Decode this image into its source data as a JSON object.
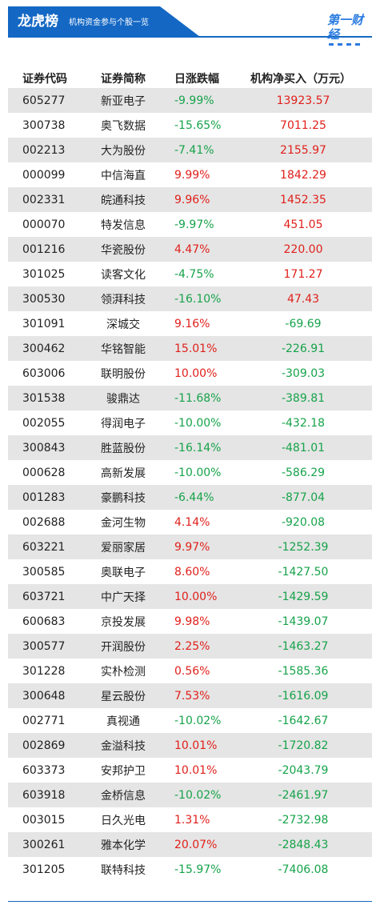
{
  "header": {
    "title": "龙虎榜",
    "subtitle": "机构资金参与个股一览",
    "logo_text": "第一财经",
    "accent_color": "#1468c4"
  },
  "table": {
    "columns": [
      "证券代码",
      "证券简称",
      "日涨跌幅",
      "机构净买入（万元）"
    ],
    "rows": [
      {
        "code": "605277",
        "name": "新亚电子",
        "change": "-9.99%",
        "net": "13923.57",
        "change_dir": "down",
        "net_dir": "up"
      },
      {
        "code": "300738",
        "name": "奥飞数据",
        "change": "-15.65%",
        "net": "7011.25",
        "change_dir": "down",
        "net_dir": "up"
      },
      {
        "code": "002213",
        "name": "大为股份",
        "change": "-7.41%",
        "net": "2155.97",
        "change_dir": "down",
        "net_dir": "up"
      },
      {
        "code": "000099",
        "name": "中信海直",
        "change": "9.99%",
        "net": "1842.29",
        "change_dir": "up",
        "net_dir": "up"
      },
      {
        "code": "002331",
        "name": "皖通科技",
        "change": "9.96%",
        "net": "1452.35",
        "change_dir": "up",
        "net_dir": "up"
      },
      {
        "code": "000070",
        "name": "特发信息",
        "change": "-9.97%",
        "net": "451.05",
        "change_dir": "down",
        "net_dir": "up"
      },
      {
        "code": "001216",
        "name": "华瓷股份",
        "change": "4.47%",
        "net": "220.00",
        "change_dir": "up",
        "net_dir": "up"
      },
      {
        "code": "301025",
        "name": "读客文化",
        "change": "-4.75%",
        "net": "171.27",
        "change_dir": "down",
        "net_dir": "up"
      },
      {
        "code": "300530",
        "name": "领湃科技",
        "change": "-16.10%",
        "net": "47.43",
        "change_dir": "down",
        "net_dir": "up"
      },
      {
        "code": "301091",
        "name": "深城交",
        "change": "9.16%",
        "net": "-69.69",
        "change_dir": "up",
        "net_dir": "down"
      },
      {
        "code": "300462",
        "name": "华铭智能",
        "change": "15.01%",
        "net": "-226.91",
        "change_dir": "up",
        "net_dir": "down"
      },
      {
        "code": "603006",
        "name": "联明股份",
        "change": "10.00%",
        "net": "-309.03",
        "change_dir": "up",
        "net_dir": "down"
      },
      {
        "code": "301538",
        "name": "骏鼎达",
        "change": "-11.68%",
        "net": "-389.81",
        "change_dir": "down",
        "net_dir": "down"
      },
      {
        "code": "002055",
        "name": "得润电子",
        "change": "-10.00%",
        "net": "-432.18",
        "change_dir": "down",
        "net_dir": "down"
      },
      {
        "code": "300843",
        "name": "胜蓝股份",
        "change": "-16.14%",
        "net": "-481.01",
        "change_dir": "down",
        "net_dir": "down"
      },
      {
        "code": "000628",
        "name": "高新发展",
        "change": "-10.00%",
        "net": "-586.29",
        "change_dir": "down",
        "net_dir": "down"
      },
      {
        "code": "001283",
        "name": "豪鹏科技",
        "change": "-6.44%",
        "net": "-877.04",
        "change_dir": "down",
        "net_dir": "down"
      },
      {
        "code": "002688",
        "name": "金河生物",
        "change": "4.14%",
        "net": "-920.08",
        "change_dir": "up",
        "net_dir": "down"
      },
      {
        "code": "603221",
        "name": "爱丽家居",
        "change": "9.97%",
        "net": "-1252.39",
        "change_dir": "up",
        "net_dir": "down"
      },
      {
        "code": "300585",
        "name": "奥联电子",
        "change": "8.60%",
        "net": "-1427.50",
        "change_dir": "up",
        "net_dir": "down"
      },
      {
        "code": "603721",
        "name": "中广天择",
        "change": "10.00%",
        "net": "-1429.59",
        "change_dir": "up",
        "net_dir": "down"
      },
      {
        "code": "600683",
        "name": "京投发展",
        "change": "9.98%",
        "net": "-1439.07",
        "change_dir": "up",
        "net_dir": "down"
      },
      {
        "code": "300577",
        "name": "开润股份",
        "change": "2.25%",
        "net": "-1463.27",
        "change_dir": "up",
        "net_dir": "down"
      },
      {
        "code": "301228",
        "name": "实朴检测",
        "change": "0.56%",
        "net": "-1585.36",
        "change_dir": "up",
        "net_dir": "down"
      },
      {
        "code": "300648",
        "name": "星云股份",
        "change": "7.53%",
        "net": "-1616.09",
        "change_dir": "up",
        "net_dir": "down"
      },
      {
        "code": "002771",
        "name": "真视通",
        "change": "-10.02%",
        "net": "-1642.67",
        "change_dir": "down",
        "net_dir": "down"
      },
      {
        "code": "002869",
        "name": "金溢科技",
        "change": "10.01%",
        "net": "-1720.82",
        "change_dir": "up",
        "net_dir": "down"
      },
      {
        "code": "603373",
        "name": "安邦护卫",
        "change": "10.01%",
        "net": "-2043.79",
        "change_dir": "up",
        "net_dir": "down"
      },
      {
        "code": "603918",
        "name": "金桥信息",
        "change": "-10.02%",
        "net": "-2461.97",
        "change_dir": "down",
        "net_dir": "down"
      },
      {
        "code": "003015",
        "name": "日久光电",
        "change": "1.31%",
        "net": "-2732.98",
        "change_dir": "up",
        "net_dir": "down"
      },
      {
        "code": "300261",
        "name": "雅本化学",
        "change": "20.07%",
        "net": "-2848.43",
        "change_dir": "up",
        "net_dir": "down"
      },
      {
        "code": "301205",
        "name": "联特科技",
        "change": "-15.97%",
        "net": "-7406.08",
        "change_dir": "down",
        "net_dir": "down"
      }
    ]
  }
}
